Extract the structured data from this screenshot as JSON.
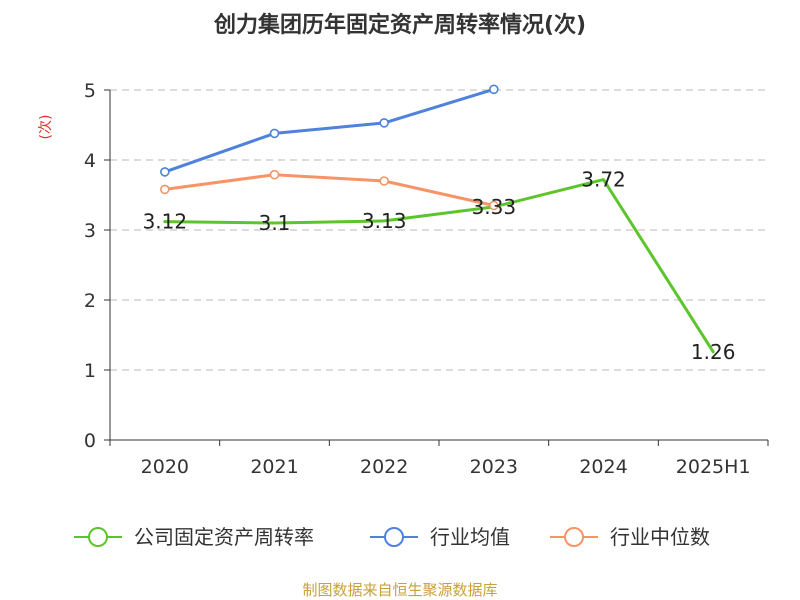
{
  "colors": {
    "company": "#5cc52b",
    "industry_avg": "#4e82dc",
    "industry_median": "#f79466",
    "ylabel": "#e0302a",
    "source": "#c9a03a",
    "grid": "#c8c8c8",
    "axis": "#333333"
  },
  "source_text": "制图数据来自恒生聚源数据库",
  "chart_data": {
    "type": "line",
    "title": "创力集团历年固定资产周转率情况(次)",
    "ylabel": "(次)",
    "xlabel": "",
    "categories": [
      "2020",
      "2021",
      "2022",
      "2023",
      "2024",
      "2025H1"
    ],
    "ylim": [
      0,
      5
    ],
    "yticks": [
      "0",
      "1",
      "2",
      "3",
      "4",
      "5"
    ],
    "grid": true,
    "legend_position": "bottom",
    "series": [
      {
        "name": "公司固定资产周转率",
        "values": [
          3.12,
          3.1,
          3.13,
          3.33,
          3.72,
          1.26
        ],
        "labels": [
          "3.12",
          "3.1",
          "3.13",
          "3.33",
          "3.72",
          "1.26"
        ],
        "show_labels": true,
        "show_markers": false
      },
      {
        "name": "行业均值",
        "values": [
          3.83,
          4.38,
          4.53,
          5.01,
          null,
          null
        ],
        "show_labels": false,
        "show_markers": true
      },
      {
        "name": "行业中位数",
        "values": [
          3.58,
          3.79,
          3.7,
          3.35,
          null,
          null
        ],
        "show_labels": false,
        "show_markers": true
      }
    ]
  }
}
